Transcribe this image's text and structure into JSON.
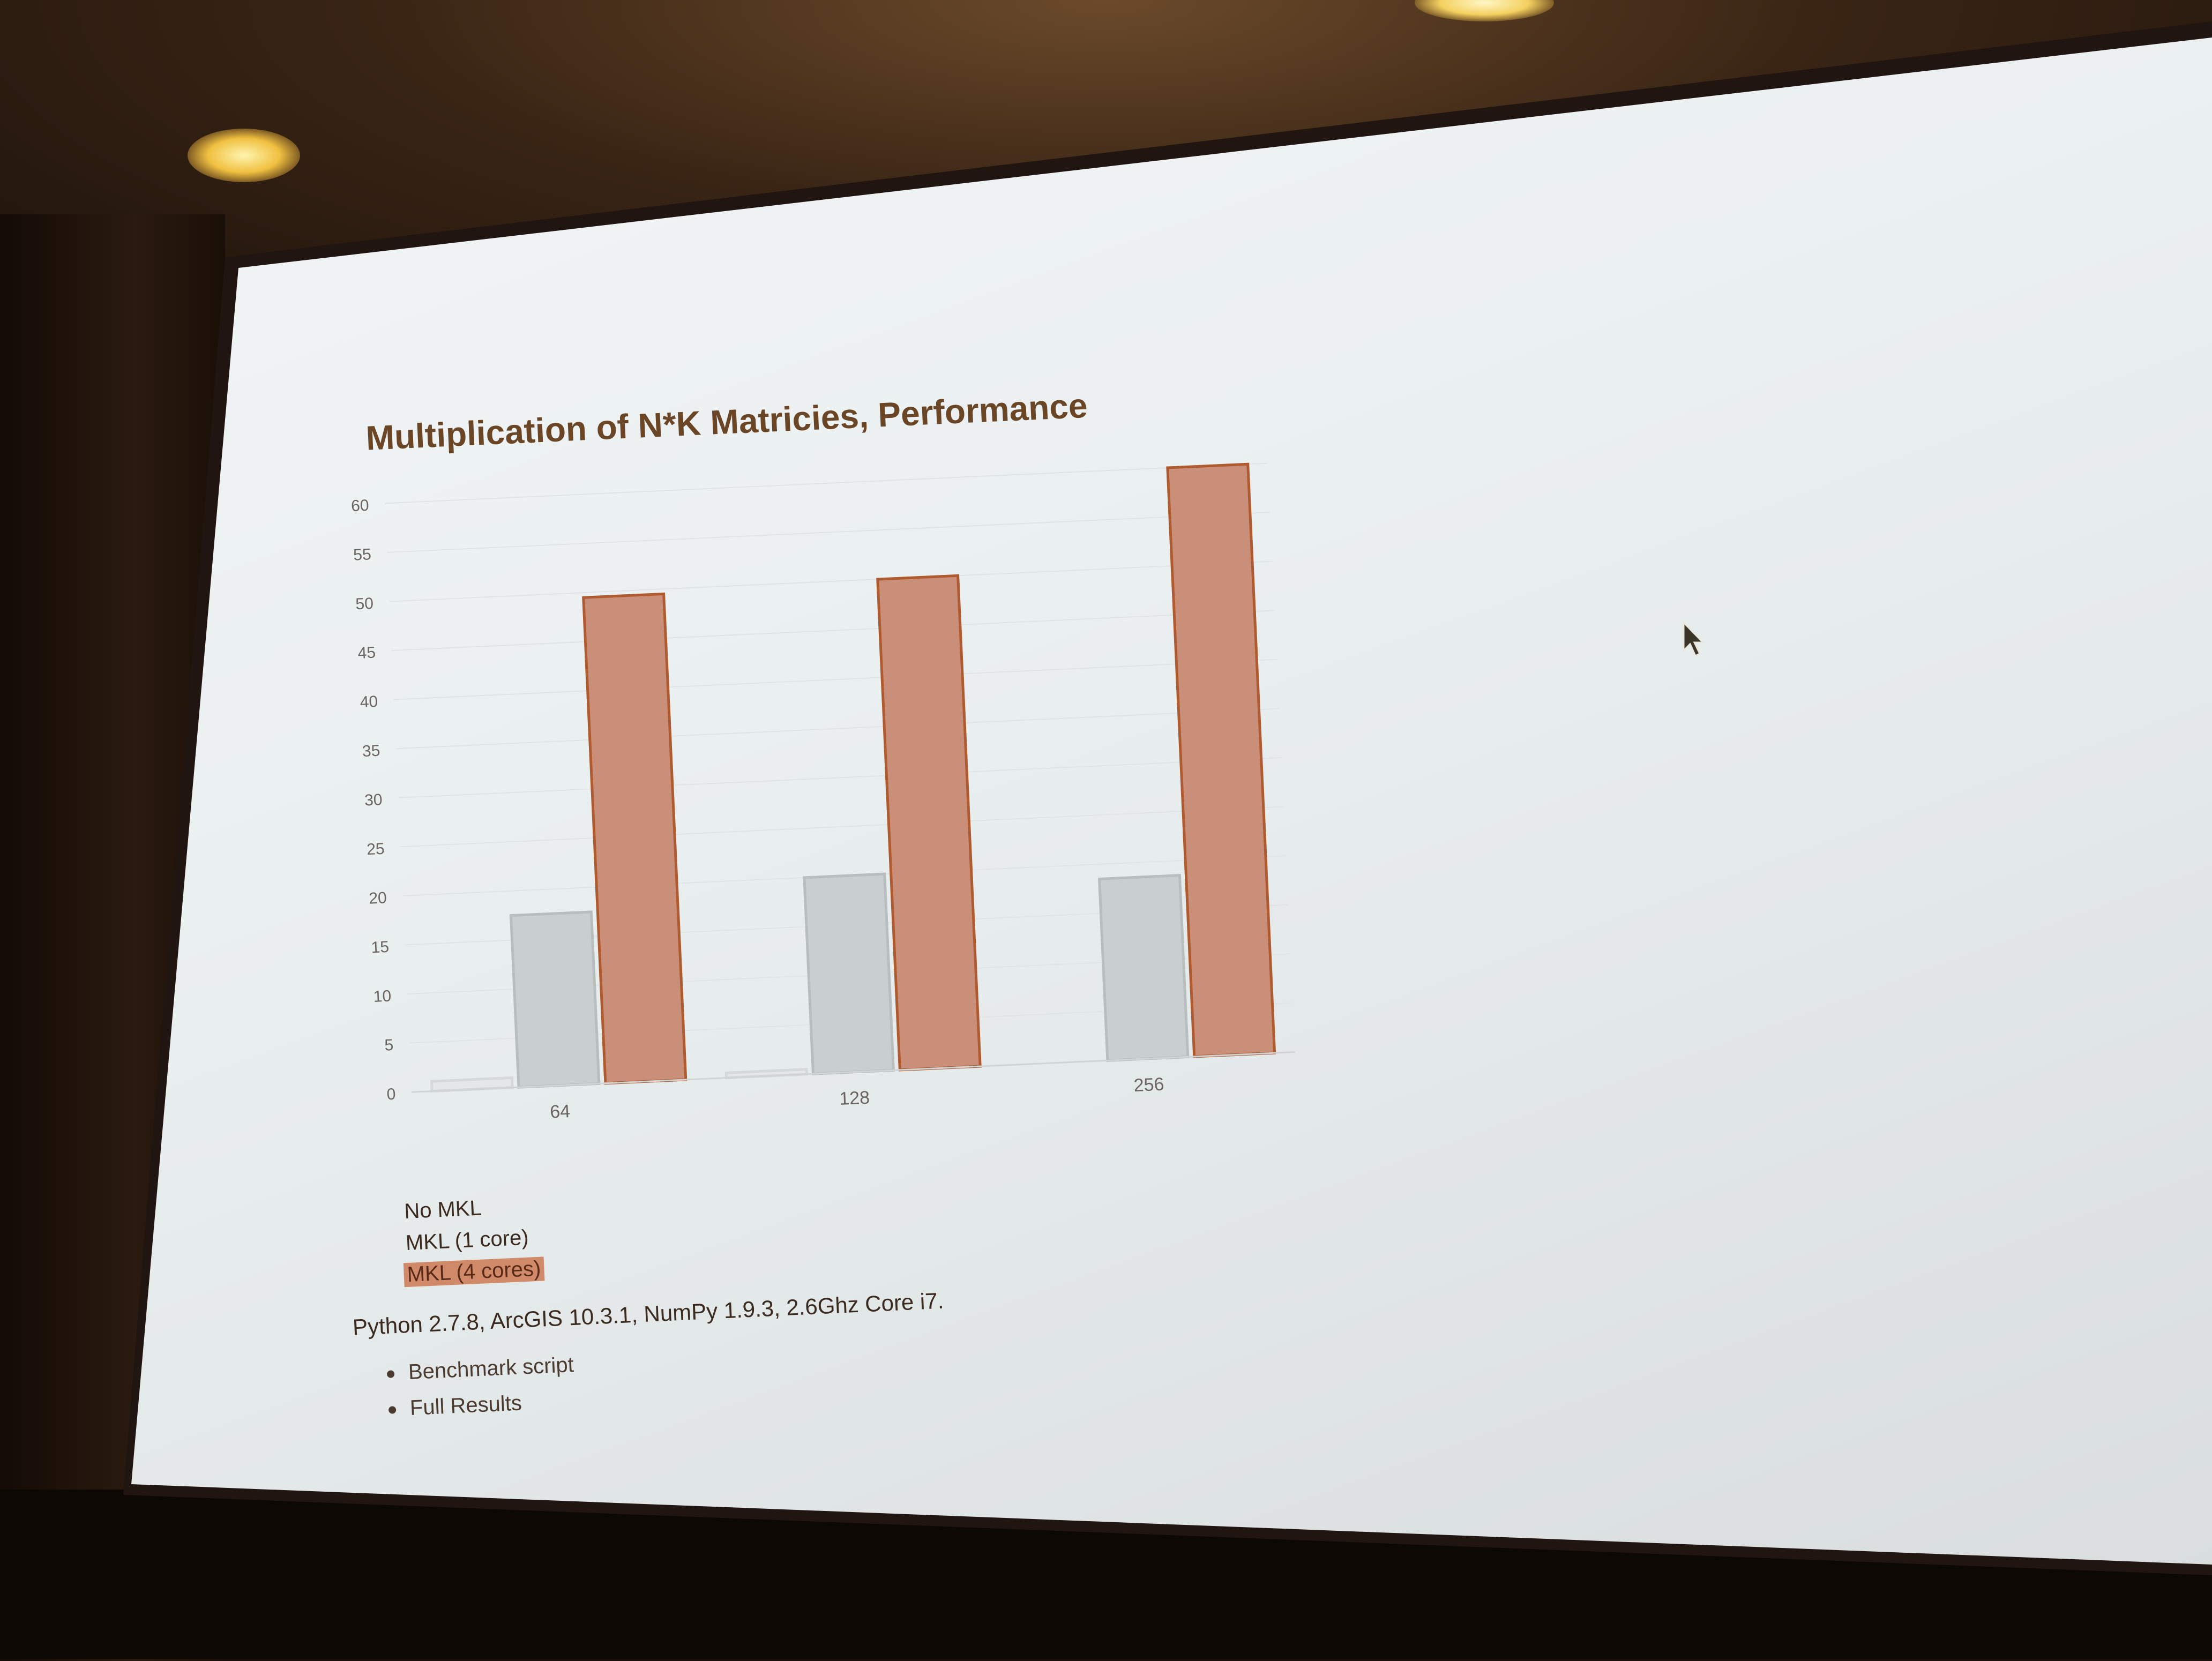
{
  "slide": {
    "title": "Multiplication of N*K Matricies, Performance",
    "legend": [
      "No MKL",
      "MKL (1 core)",
      "MKL (4 cores)"
    ],
    "note": "Python 2.7.8, ArcGIS 10.3.1, NumPy 1.9.3, 2.6Ghz Core i7.",
    "links": [
      "Benchmark script",
      "Full Results"
    ]
  },
  "colors": {
    "no_mkl": "#e4e7e7",
    "mkl_1": "#c9cfcf",
    "mkl_4": "#c98f78",
    "mkl_4_border": "#b05a30",
    "title": "#6a4526"
  },
  "chart_data": {
    "type": "bar",
    "title": "Multiplication of N*K Matricies, Performance",
    "xlabel": "",
    "ylabel": "",
    "categories": [
      "64",
      "128",
      "256"
    ],
    "series": [
      {
        "name": "No MKL",
        "values": [
          1,
          0.5,
          0
        ]
      },
      {
        "name": "MKL (1 core)",
        "values": [
          17.5,
          20,
          18.5
        ]
      },
      {
        "name": "MKL (4 cores)",
        "values": [
          49.5,
          50,
          60
        ]
      }
    ],
    "ylim": [
      0,
      60
    ],
    "yticks": [
      0,
      5,
      10,
      15,
      20,
      25,
      30,
      35,
      40,
      45,
      50,
      55,
      60
    ],
    "grid": true,
    "legend_position": "bottom-left"
  }
}
